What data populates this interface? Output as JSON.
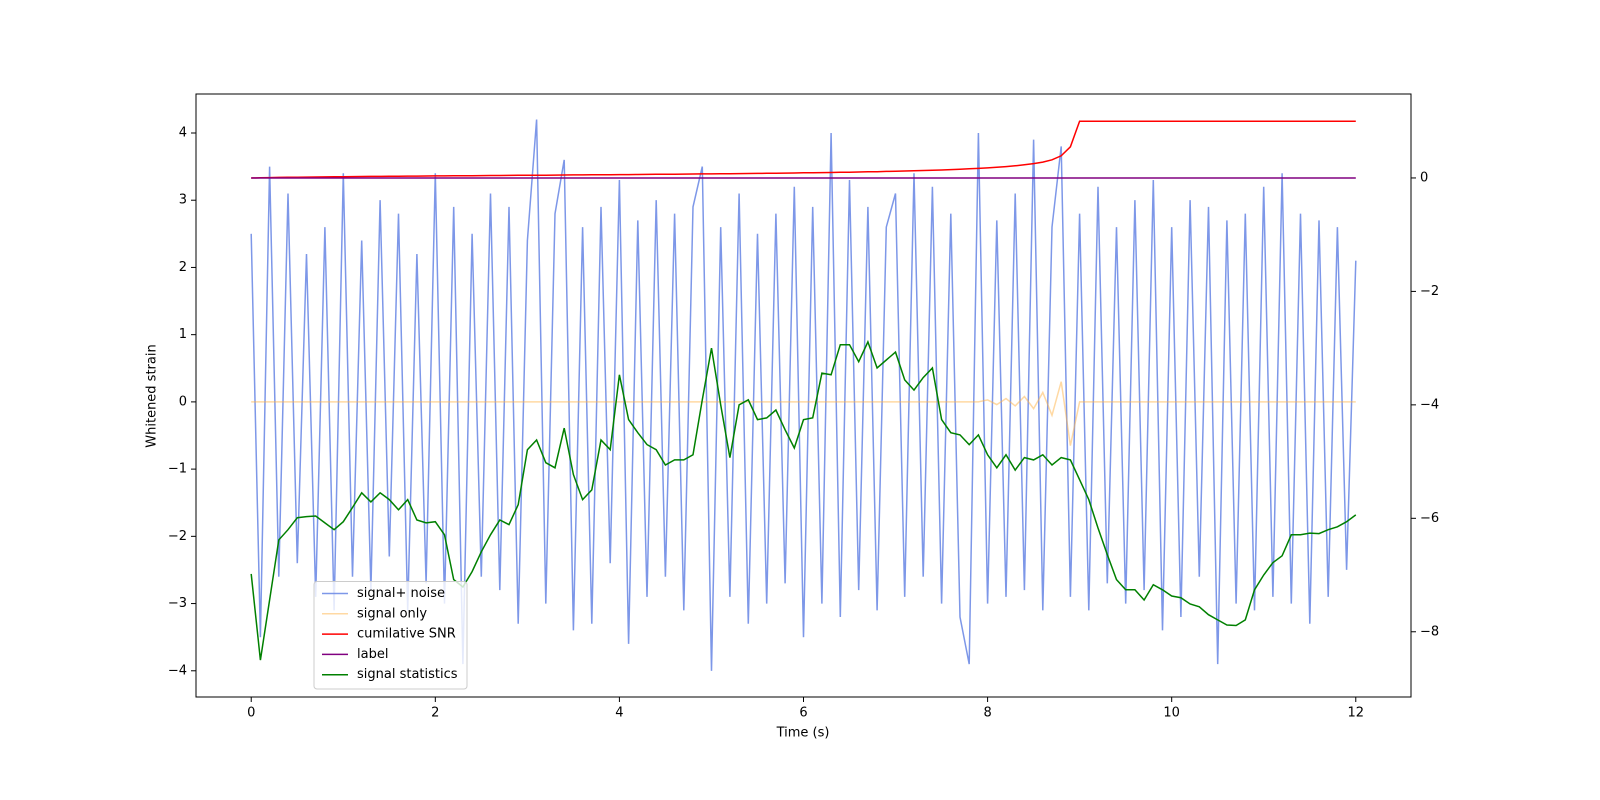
{
  "chart_data": {
    "type": "line",
    "x_label": "Time (s)",
    "y_label": "Whitened strain",
    "x": [
      0,
      0.1,
      0.2,
      0.3,
      0.4,
      0.5,
      0.6,
      0.7,
      0.8,
      0.9,
      1,
      1.1,
      1.2,
      1.3,
      1.4,
      1.5,
      1.6,
      1.7,
      1.8,
      1.9,
      2,
      2.1,
      2.2,
      2.3,
      2.4,
      2.5,
      2.6,
      2.7,
      2.8,
      2.9,
      3,
      3.1,
      3.2,
      3.3,
      3.4,
      3.5,
      3.6,
      3.7,
      3.8,
      3.9,
      4,
      4.1,
      4.2,
      4.3,
      4.4,
      4.5,
      4.6,
      4.7,
      4.8,
      4.9,
      5,
      5.1,
      5.2,
      5.3,
      5.4,
      5.5,
      5.6,
      5.7,
      5.8,
      5.9,
      6,
      6.1,
      6.2,
      6.3,
      6.4,
      6.5,
      6.6,
      6.7,
      6.8,
      6.9,
      7,
      7.1,
      7.2,
      7.3,
      7.4,
      7.5,
      7.6,
      7.7,
      7.8,
      7.9,
      8,
      8.1,
      8.2,
      8.3,
      8.4,
      8.5,
      8.6,
      8.7,
      8.8,
      8.9,
      9,
      9.1,
      9.2,
      9.3,
      9.4,
      9.5,
      9.6,
      9.7,
      9.8,
      9.9,
      10,
      10.1,
      10.2,
      10.3,
      10.4,
      10.5,
      10.6,
      10.7,
      10.8,
      10.9,
      11,
      11.1,
      11.2,
      11.3,
      11.4,
      11.5,
      11.6,
      11.7,
      11.8,
      11.9,
      12
    ],
    "series": [
      {
        "name": "signal+ noise",
        "color": "#6f8ce6",
        "values": [
          2.5,
          -3.5,
          3.5,
          -2.6,
          3.1,
          -2.4,
          2.2,
          -2.9,
          2.6,
          -3.1,
          3.4,
          -2.6,
          2.4,
          -2.8,
          3.0,
          -2.3,
          2.8,
          -3.1,
          2.2,
          -2.7,
          3.4,
          -3.0,
          2.9,
          -3.9,
          2.5,
          -2.6,
          3.1,
          -2.8,
          2.9,
          -3.3,
          2.4,
          4.2,
          -3.0,
          2.8,
          3.6,
          -3.4,
          2.6,
          -3.3,
          2.9,
          -2.4,
          3.3,
          -3.6,
          2.7,
          -2.9,
          3.0,
          -2.6,
          2.8,
          -3.1,
          2.9,
          3.5,
          -4.0,
          2.6,
          -2.9,
          3.1,
          -3.3,
          2.5,
          -3.0,
          2.8,
          -2.7,
          3.2,
          -3.5,
          2.9,
          -3.0,
          4.0,
          -3.2,
          3.3,
          -2.8,
          2.9,
          -3.1,
          2.6,
          3.1,
          -2.9,
          3.4,
          -2.6,
          3.2,
          -3.0,
          2.8,
          -3.2,
          -3.9,
          4.0,
          -3.0,
          2.7,
          -2.9,
          3.1,
          -2.8,
          3.9,
          -3.1,
          2.6,
          3.8,
          -2.9,
          2.8,
          -3.1,
          3.2,
          -2.7,
          2.6,
          -3.0,
          3.0,
          -2.8,
          3.3,
          -3.4,
          2.6,
          -3.2,
          3.0,
          -2.6,
          2.9,
          -3.9,
          2.7,
          -3.0,
          2.8,
          -3.1,
          3.2,
          -2.9,
          3.4,
          -3.0,
          2.8,
          -3.3,
          2.7,
          -2.9,
          2.6,
          -2.5,
          2.1
        ]
      },
      {
        "name": "signal only",
        "color": "#ffb347",
        "values": [
          0,
          0,
          0,
          0,
          0,
          0,
          0,
          0,
          0,
          0,
          0,
          0,
          0,
          0,
          0,
          0,
          0,
          0,
          0,
          0,
          0,
          0,
          0,
          0,
          0,
          0,
          0,
          0,
          0,
          0,
          0,
          0,
          0,
          0,
          0,
          0,
          0,
          0,
          0,
          0,
          0,
          0,
          0,
          0,
          0,
          0,
          0,
          0,
          0,
          0,
          0,
          0,
          0,
          0,
          0,
          0,
          0,
          0,
          0,
          0,
          0,
          0,
          0,
          0,
          0,
          0,
          0,
          0,
          0,
          0,
          0,
          0,
          0,
          0,
          0,
          0,
          0,
          0,
          0,
          0,
          0.03,
          -0.04,
          0.05,
          -0.06,
          0.08,
          -0.1,
          0.14,
          -0.2,
          0.3,
          -0.65,
          0,
          0,
          0,
          0,
          0,
          0,
          0,
          0,
          0,
          0,
          0,
          0,
          0,
          0,
          0,
          0,
          0,
          0,
          0,
          0,
          0,
          0,
          0,
          0,
          0,
          0,
          0,
          0,
          0,
          0,
          0
        ]
      },
      {
        "name": "cumilative SNR",
        "color": "#ff0000",
        "axis": "y2",
        "values": [
          0,
          0.003,
          0.006,
          0.009,
          0.011,
          0.013,
          0.015,
          0.017,
          0.019,
          0.021,
          0.022,
          0.024,
          0.025,
          0.027,
          0.028,
          0.029,
          0.031,
          0.032,
          0.033,
          0.034,
          0.036,
          0.037,
          0.038,
          0.039,
          0.04,
          0.042,
          0.043,
          0.044,
          0.045,
          0.046,
          0.047,
          0.048,
          0.049,
          0.05,
          0.052,
          0.053,
          0.054,
          0.055,
          0.056,
          0.058,
          0.059,
          0.06,
          0.061,
          0.063,
          0.064,
          0.065,
          0.067,
          0.068,
          0.069,
          0.071,
          0.072,
          0.074,
          0.075,
          0.077,
          0.078,
          0.08,
          0.082,
          0.084,
          0.086,
          0.088,
          0.09,
          0.092,
          0.094,
          0.097,
          0.099,
          0.102,
          0.105,
          0.108,
          0.111,
          0.115,
          0.118,
          0.122,
          0.126,
          0.131,
          0.136,
          0.141,
          0.147,
          0.154,
          0.161,
          0.169,
          0.178,
          0.189,
          0.201,
          0.215,
          0.232,
          0.253,
          0.28,
          0.32,
          0.39,
          0.55,
          1,
          1,
          1,
          1,
          1,
          1,
          1,
          1,
          1,
          1,
          1,
          1,
          1,
          1,
          1,
          1,
          1,
          1,
          1,
          1,
          1,
          1,
          1,
          1,
          1,
          1,
          1,
          1,
          1,
          1,
          1
        ]
      },
      {
        "name": "label",
        "color": "#800080",
        "axis": "y2",
        "values": [
          0,
          0,
          0,
          0,
          0,
          0,
          0,
          0,
          0,
          0,
          0,
          0,
          0,
          0,
          0,
          0,
          0,
          0,
          0,
          0,
          0,
          0,
          0,
          0,
          0,
          0,
          0,
          0,
          0,
          0,
          0,
          0,
          0,
          0,
          0,
          0,
          0,
          0,
          0,
          0,
          0,
          0,
          0,
          0,
          0,
          0,
          0,
          0,
          0,
          0,
          0,
          0,
          0,
          0,
          0,
          0,
          0,
          0,
          0,
          0,
          0,
          0,
          0,
          0,
          0,
          0,
          0,
          0,
          0,
          0,
          0,
          0,
          0,
          0,
          0,
          0,
          0,
          0,
          0,
          0,
          0,
          0,
          0,
          0,
          0,
          0,
          0,
          0,
          0,
          0,
          0,
          0,
          0,
          0,
          0,
          0,
          0,
          0,
          0,
          0,
          0,
          0,
          0,
          0,
          0,
          0,
          0,
          0,
          0,
          0,
          0,
          0,
          0,
          0,
          0,
          0,
          0,
          0,
          0,
          0,
          0
        ]
      },
      {
        "name": "signal statistics",
        "color": "#008000",
        "axis": "y2",
        "values": [
          -6.98,
          -8.5,
          -7.44,
          -6.38,
          -6.2,
          -5.99,
          -5.97,
          -5.96,
          -6.08,
          -6.2,
          -6.06,
          -5.81,
          -5.55,
          -5.71,
          -5.55,
          -5.67,
          -5.85,
          -5.67,
          -6.03,
          -6.08,
          -6.06,
          -6.29,
          -7.08,
          -7.21,
          -6.94,
          -6.59,
          -6.29,
          -6.03,
          -6.11,
          -5.76,
          -4.79,
          -4.62,
          -5.02,
          -5.11,
          -4.41,
          -5.23,
          -5.67,
          -5.5,
          -4.62,
          -4.79,
          -3.47,
          -4.26,
          -4.49,
          -4.7,
          -4.79,
          -5.06,
          -4.97,
          -4.97,
          -4.88,
          -3.91,
          -3.0,
          -4.0,
          -4.93,
          -4.0,
          -3.91,
          -4.26,
          -4.23,
          -4.09,
          -4.44,
          -4.76,
          -4.26,
          -4.23,
          -3.44,
          -3.47,
          -2.94,
          -2.94,
          -3.24,
          -2.89,
          -3.35,
          -3.21,
          -3.07,
          -3.56,
          -3.74,
          -3.52,
          -3.35,
          -4.26,
          -4.49,
          -4.53,
          -4.7,
          -4.53,
          -4.88,
          -5.11,
          -4.88,
          -5.15,
          -4.93,
          -4.97,
          -4.88,
          -5.06,
          -4.93,
          -4.97,
          -5.32,
          -5.67,
          -6.17,
          -6.64,
          -7.08,
          -7.26,
          -7.26,
          -7.44,
          -7.17,
          -7.26,
          -7.37,
          -7.4,
          -7.51,
          -7.56,
          -7.7,
          -7.79,
          -7.88,
          -7.89,
          -7.79,
          -7.26,
          -7.0,
          -6.78,
          -6.66,
          -6.29,
          -6.29,
          -6.26,
          -6.27,
          -6.2,
          -6.15,
          -6.06,
          -5.94
        ]
      }
    ],
    "xlim": [
      -0.6,
      12.6
    ],
    "xticks": [
      0,
      2,
      4,
      6,
      8,
      10,
      12
    ],
    "ylim": [
      -4.39,
      4.58
    ],
    "yticks": [
      {
        "value": -4,
        "label": "−4"
      },
      {
        "value": -3,
        "label": "−3"
      },
      {
        "value": -2,
        "label": "−2"
      },
      {
        "value": -1,
        "label": "−1"
      },
      0,
      1,
      2,
      3,
      4
    ],
    "y2lim": [
      -9.15,
      1.48
    ],
    "y2ticks": [
      {
        "value": -8,
        "label": "−8"
      },
      {
        "value": -6,
        "label": "−6"
      },
      {
        "value": -4,
        "label": "−4"
      },
      {
        "value": -2,
        "label": "−2"
      },
      0
    ],
    "legend": "lower left"
  }
}
